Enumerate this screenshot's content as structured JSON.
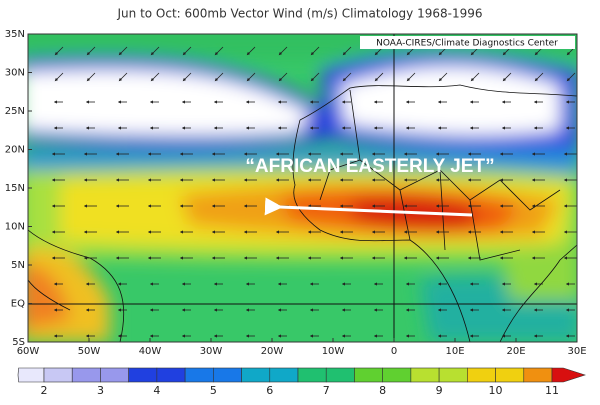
{
  "title": "Jun to Oct: 600mb Vector Wind (m/s) Climatology 1968-1996",
  "credit": "NOAA-CIRES/Climate Diagnostics Center",
  "annotation": "“AFRICAN EASTERLY JET”",
  "lat_labels": [
    "35N",
    "30N",
    "25N",
    "20N",
    "15N",
    "10N",
    "5N",
    "EQ",
    "5S"
  ],
  "lon_labels": [
    "60W",
    "50W",
    "40W",
    "30W",
    "20W",
    "10W",
    "0",
    "10E",
    "20E",
    "30E"
  ],
  "colorbar": {
    "levels": [
      2,
      3,
      4,
      5,
      6,
      7,
      8,
      9,
      10,
      11
    ]
  }
}
